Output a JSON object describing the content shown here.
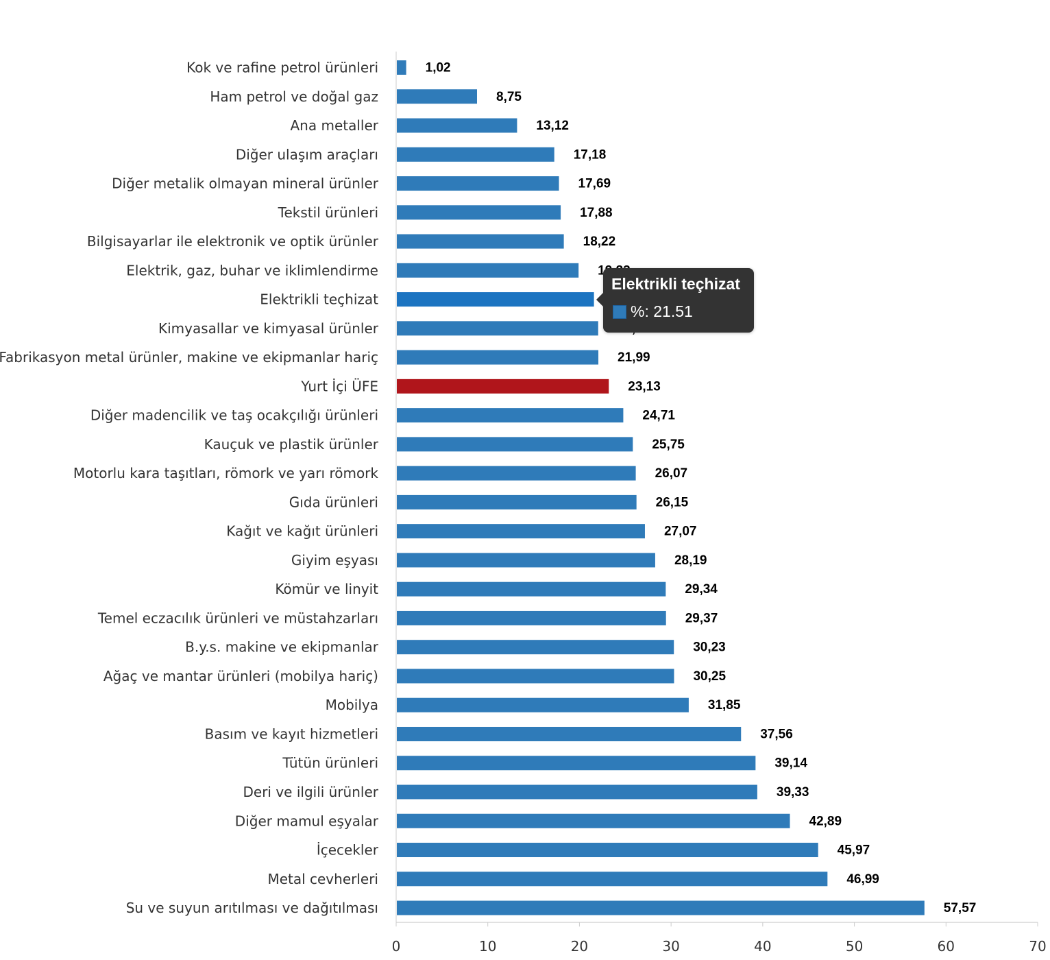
{
  "chart_data": {
    "type": "bar",
    "orientation": "horizontal",
    "categories": [
      "Kok ve rafine petrol ürünleri",
      "Ham petrol ve doğal gaz",
      "Ana metaller",
      "Diğer ulaşım araçları",
      "Diğer metalik olmayan mineral ürünler",
      "Tekstil ürünleri",
      "Bilgisayarlar ile elektronik ve optik ürünler",
      "Elektrik, gaz, buhar ve iklimlendirme",
      "Elektrikli teçhizat",
      "Kimyasallar ve kimyasal ürünler",
      "Fabrikasyon metal ürünler, makine ve ekipmanlar hariç",
      "Yurt İçi ÜFE",
      "Diğer madencilik ve taş ocakçılığı ürünleri",
      "Kauçuk ve plastik ürünler",
      "Motorlu kara taşıtları, römork ve yarı römork",
      "Gıda ürünleri",
      "Kağıt ve kağıt ürünleri",
      "Giyim eşyası",
      "Kömür ve linyit",
      "Temel eczacılık ürünleri ve müstahzarları",
      "B.y.s. makine ve ekipmanlar",
      "Ağaç ve mantar ürünleri (mobilya hariç)",
      "Mobilya",
      "Basım ve kayıt hizmetleri",
      "Tütün ürünleri",
      "Deri ve ilgili ürünler",
      "Diğer mamul eşyalar",
      "İçecekler",
      "Metal cevherleri",
      "Su ve suyun arıtılması ve dağıtılması"
    ],
    "values": [
      1.02,
      8.75,
      13.12,
      17.18,
      17.69,
      17.88,
      18.22,
      19.83,
      21.51,
      21.97,
      21.99,
      23.13,
      24.71,
      25.75,
      26.07,
      26.15,
      27.07,
      28.19,
      29.34,
      29.37,
      30.23,
      30.25,
      31.85,
      37.56,
      39.14,
      39.33,
      42.89,
      45.97,
      46.99,
      57.57
    ],
    "value_labels": [
      "1,02",
      "8,75",
      "13,12",
      "17,18",
      "17,69",
      "17,88",
      "18,22",
      "19,83",
      "21,51",
      "21,97",
      "21,99",
      "23,13",
      "24,71",
      "25,75",
      "26,07",
      "26,15",
      "27,07",
      "28,19",
      "29,34",
      "29,37",
      "30,23",
      "30,25",
      "31,85",
      "37,56",
      "39,14",
      "39,33",
      "42,89",
      "45,97",
      "46,99",
      "57,57"
    ],
    "xlim": [
      0,
      70
    ],
    "xticks": [
      0,
      10,
      20,
      30,
      40,
      50,
      60,
      70
    ],
    "grid": false,
    "colors": {
      "default": "#2f7bb9",
      "highlight": "#b0151b",
      "hover": "#1c74c1"
    },
    "highlight_category": "Yurt İçi ÜFE",
    "hovered_category": "Elektrikli teçhizat"
  },
  "tooltip": {
    "title": "Elektrikli teçhizat",
    "series_label": "%",
    "value_text": "21.51",
    "swatch_color": "#2f7bb9"
  }
}
